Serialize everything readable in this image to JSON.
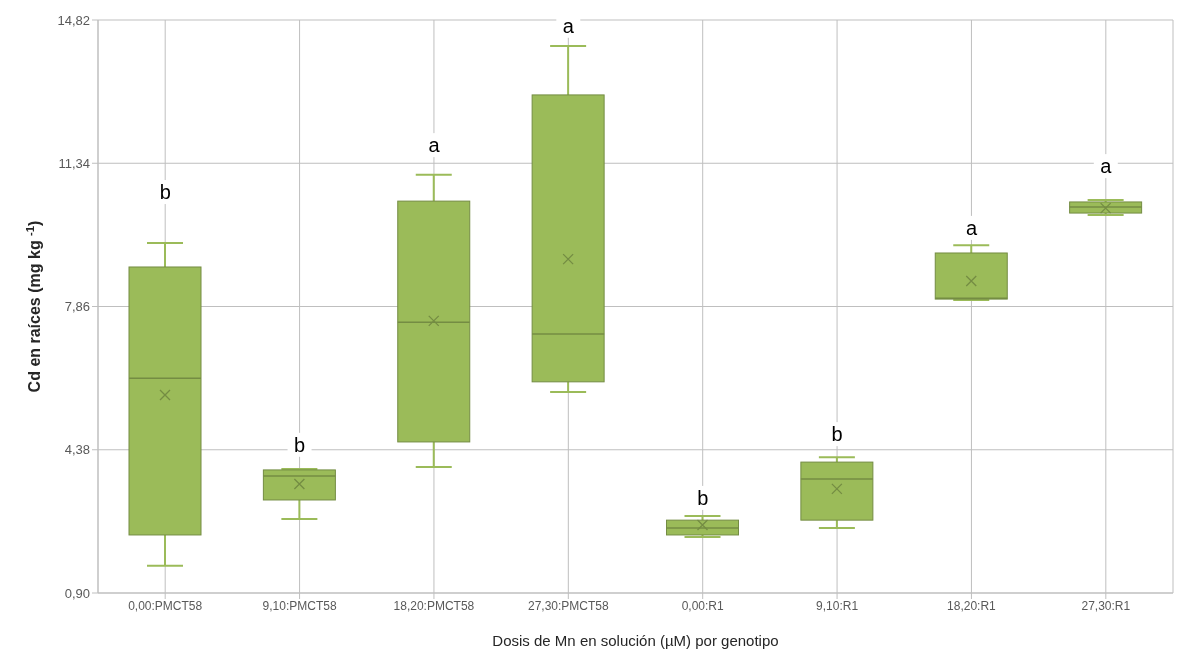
{
  "chart_data": {
    "type": "box",
    "xlabel": "Dosis de Mn en solución (µM) por genotipo",
    "ylabel": "Cd en raíces (mg kg $^{-1}$)",
    "categories": [
      "0,00:PMCT58",
      "9,10:PMCT58",
      "18,20:PMCT58",
      "27,30:PMCT58",
      "0,00:R1",
      "9,10:R1",
      "18,20:R1",
      "27,30:R1"
    ],
    "series": [
      {
        "color": "#9bbb59",
        "boxes": [
          {
            "low": 1.56,
            "q1": 2.31,
            "median": 6.12,
            "q3": 8.82,
            "high": 9.4,
            "mean": 5.71
          },
          {
            "low": 2.7,
            "q1": 3.16,
            "median": 3.74,
            "q3": 3.89,
            "high": 3.91,
            "mean": 3.55
          },
          {
            "low": 3.96,
            "q1": 4.57,
            "median": 7.48,
            "q3": 10.42,
            "high": 11.06,
            "mean": 7.51
          },
          {
            "low": 5.78,
            "q1": 6.03,
            "median": 7.19,
            "q3": 13.0,
            "high": 14.19,
            "mean": 9.01
          },
          {
            "low": 2.26,
            "q1": 2.31,
            "median": 2.48,
            "q3": 2.67,
            "high": 2.77,
            "mean": 2.55
          },
          {
            "low": 2.48,
            "q1": 2.67,
            "median": 3.67,
            "q3": 4.08,
            "high": 4.2,
            "mean": 3.43
          },
          {
            "low": 8.02,
            "q1": 8.04,
            "median": 8.06,
            "q3": 9.16,
            "high": 9.35,
            "mean": 8.48
          },
          {
            "low": 10.08,
            "q1": 10.13,
            "median": 10.28,
            "q3": 10.4,
            "high": 10.45,
            "mean": 10.25
          }
        ]
      }
    ],
    "ylim": [
      0.9,
      14.82
    ],
    "yticks": [
      {
        "value": 0.9,
        "label": "0,90"
      },
      {
        "value": 4.38,
        "label": "4,38"
      },
      {
        "value": 7.86,
        "label": "7,86"
      },
      {
        "value": 11.34,
        "label": "11,34"
      },
      {
        "value": 14.82,
        "label": "14,82"
      }
    ],
    "grid": true,
    "marker": "cross",
    "annotations": [
      {
        "text": "b",
        "x": "0,00:PMCT58",
        "y": 10.64
      },
      {
        "text": "b",
        "x": "9,10:PMCT58",
        "y": 4.5
      },
      {
        "text": "a",
        "x": "18,20:PMCT58",
        "y": 11.78
      },
      {
        "text": "a",
        "x": "27,30:PMCT58",
        "y": 14.68
      },
      {
        "text": "b",
        "x": "0,00:R1",
        "y": 3.21
      },
      {
        "text": "b",
        "x": "9,10:R1",
        "y": 4.76
      },
      {
        "text": "a",
        "x": "18,20:R1",
        "y": 9.77
      },
      {
        "text": "a",
        "x": "27,30:R1",
        "y": 11.27
      }
    ]
  }
}
